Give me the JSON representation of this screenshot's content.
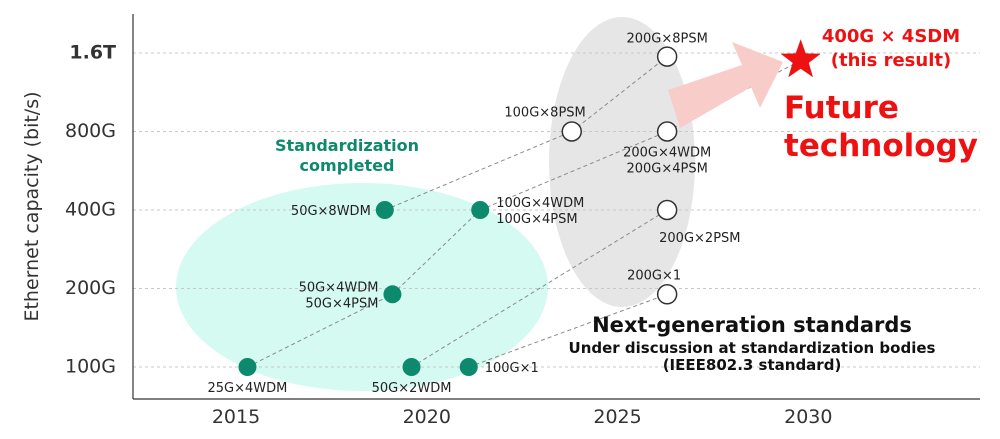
{
  "chart_data": {
    "type": "scatter",
    "ylabel": "Ethernet capacity (bit/s)",
    "x_ticks": [
      "2015",
      "2020",
      "2025",
      "2030"
    ],
    "xlim": [
      2012.3,
      2034.5
    ],
    "y_scale": "log2",
    "y_ticks": [
      {
        "label": "100G",
        "value": 100,
        "highlight": false
      },
      {
        "label": "200G",
        "value": 200,
        "highlight": false
      },
      {
        "label": "400G",
        "value": 400,
        "highlight": false
      },
      {
        "label": "800G",
        "value": 800,
        "highlight": false
      },
      {
        "label": "1.6T",
        "value": 1600,
        "highlight": true
      }
    ],
    "grid": "horizontal dashed",
    "series": [
      {
        "group": "completed",
        "points": [
          {
            "year": 2015.3,
            "capacity": 100,
            "label": [
              "25G×4WDM"
            ],
            "label_pos": "below"
          },
          {
            "year": 2019.6,
            "capacity": 100,
            "label": [
              "50G×2WDM"
            ],
            "label_pos": "below"
          },
          {
            "year": 2021.1,
            "capacity": 100,
            "label": [
              "100G×1"
            ],
            "label_pos": "right"
          },
          {
            "year": 2019.1,
            "capacity": 190,
            "label": [
              "50G×4WDM",
              "50G×4PSM"
            ],
            "label_pos": "left"
          },
          {
            "year": 2018.9,
            "capacity": 400,
            "label": [
              "50G×8WDM"
            ],
            "label_pos": "left"
          },
          {
            "year": 2021.4,
            "capacity": 400,
            "label": [
              "100G×4WDM",
              "100G×4PSM"
            ],
            "label_pos": "right"
          }
        ]
      },
      {
        "group": "next-generation",
        "points": [
          {
            "year": 2026.3,
            "capacity": 190,
            "label": [
              "200G×1"
            ],
            "label_pos": "above-left"
          },
          {
            "year": 2026.3,
            "capacity": 400,
            "label": [
              "200G×2PSM"
            ],
            "label_pos": "below-right"
          },
          {
            "year": 2026.3,
            "capacity": 800,
            "label": [
              "200G×4WDM",
              "200G×4PSM"
            ],
            "label_pos": "below"
          },
          {
            "year": 2023.8,
            "capacity": 800,
            "label": [
              "100G×8PSM"
            ],
            "label_pos": "above-left"
          },
          {
            "year": 2026.3,
            "capacity": 1550,
            "label": [
              "200G×8PSM"
            ],
            "label_pos": "above"
          }
        ]
      }
    ],
    "connections": [
      {
        "from": [
          2015.3,
          100
        ],
        "to": [
          2019.1,
          190
        ]
      },
      {
        "from": [
          2019.1,
          190
        ],
        "to": [
          2021.4,
          400
        ]
      },
      {
        "from": [
          2019.6,
          100
        ],
        "to": [
          2026.3,
          400
        ]
      },
      {
        "from": [
          2021.1,
          100
        ],
        "to": [
          2026.3,
          190
        ]
      },
      {
        "from": [
          2018.9,
          400
        ],
        "to": [
          2023.8,
          800
        ]
      },
      {
        "from": [
          2023.8,
          800
        ],
        "to": [
          2026.3,
          1550
        ]
      },
      {
        "from": [
          2021.4,
          400
        ],
        "to": [
          2026.3,
          800
        ]
      },
      {
        "from": [
          2026.3,
          800
        ],
        "to": [
          2029.8,
          1500
        ]
      }
    ],
    "highlight_point": {
      "year": 2029.8,
      "capacity": 1500,
      "label": [
        "400G × 4SDM",
        "(this result)"
      ]
    },
    "annotations": {
      "completed": [
        "Standardization",
        "completed"
      ],
      "future": [
        "Future",
        "technology"
      ],
      "nextgen_title": "Next-generation standards",
      "nextgen_sub": [
        "Under discussion at standardization bodies",
        "(IEEE802.3 standard)"
      ]
    }
  },
  "colors": {
    "completed": "#0d8a6e",
    "completed_region": "#d5faf2",
    "nextgen_region": "#e6e6e6",
    "accent": "#ee1111",
    "arrow": "#f8cdc9",
    "axis": "#333333",
    "grid": "#c8c8c8",
    "connector": "#8a8a8a"
  }
}
